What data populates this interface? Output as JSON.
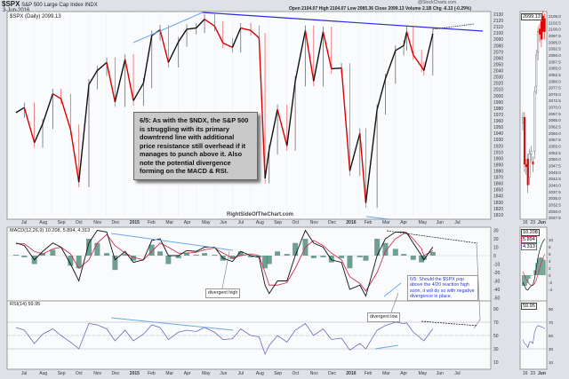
{
  "header": {
    "symbol": "$SPX",
    "name": "S&P 500 Large Cap Index",
    "exchange": "INDX",
    "date": "3-Jun-2016",
    "brand": "@StockCharts.com",
    "quote": "Open 2104.07  High 2104.07  Low 2085.36  Close 2099.13  Volume 2.1B  Chg -6.13 (-0.29%)",
    "legend": "$SPX (Daily) 2099.13",
    "watermark": "RightSideOfTheChart.com"
  },
  "annotations": {
    "main_note": "6/5: As with the $NDX, the S&P 500 is struggling with its primary downtrend line with additional price resistance still overhead if it manages to punch above it. Also note the potential divergence forming on the MACD & RSI.",
    "macd_note": "6/5: Should the $SPX pop above the 4/20 reaction high soon, it will do so with negative divergence in place.",
    "divergent_high": "divergent high",
    "divergent_low": "divergent low"
  },
  "colors": {
    "up": "#111111",
    "down": "#dd0000",
    "macd": "#111111",
    "signal": "#cc3355",
    "hist": "#4a8a78",
    "trend": "#2a2adc",
    "trend_light": "#6aa8e8",
    "rsi": "#6a6ab8"
  },
  "chart_data": [
    {
      "type": "line",
      "title": "$SPX (Daily) 2099.13",
      "months": [
        "Jul",
        "Aug",
        "Sep",
        "Oct",
        "Nov",
        "Dec",
        "2015",
        "Feb",
        "Mar",
        "Apr",
        "May",
        "Jun",
        "Jul",
        "Aug",
        "Sep",
        "Oct",
        "Nov",
        "Dec",
        "2016",
        "Feb",
        "Mar",
        "Apr",
        "May",
        "Jun",
        "Jul"
      ],
      "ylim": [
        1805,
        2135
      ],
      "yticks": [
        2130,
        2120,
        2110,
        2100,
        2090,
        2080,
        2070,
        2060,
        2050,
        2040,
        2030,
        2020,
        2010,
        2000,
        1990,
        1980,
        1970,
        1960,
        1950,
        1940,
        1930,
        1920,
        1910,
        1900,
        1890,
        1880,
        1870,
        1860,
        1850,
        1840,
        1830,
        1820,
        1810
      ],
      "dates": [
        "2014-07-01",
        "2014-07-15",
        "2014-08-01",
        "2014-08-15",
        "2014-09-01",
        "2014-09-15",
        "2014-10-01",
        "2014-10-15",
        "2014-11-01",
        "2014-11-15",
        "2014-12-01",
        "2014-12-15",
        "2015-01-01",
        "2015-01-15",
        "2015-02-01",
        "2015-02-15",
        "2015-03-01",
        "2015-03-15",
        "2015-04-01",
        "2015-04-15",
        "2015-05-01",
        "2015-05-15",
        "2015-06-01",
        "2015-06-15",
        "2015-07-01",
        "2015-07-15",
        "2015-08-01",
        "2015-08-15",
        "2015-08-25",
        "2015-09-01",
        "2015-09-15",
        "2015-10-01",
        "2015-10-15",
        "2015-11-01",
        "2015-11-15",
        "2015-12-01",
        "2015-12-15",
        "2016-01-01",
        "2016-01-15",
        "2016-02-01",
        "2016-02-11",
        "2016-03-01",
        "2016-03-15",
        "2016-04-01",
        "2016-04-15",
        "2016-04-20",
        "2016-05-01",
        "2016-05-15",
        "2016-05-19",
        "2016-06-03"
      ],
      "close": [
        1973,
        1981,
        1925,
        1955,
        2003,
        1995,
        1946,
        1862,
        2018,
        2040,
        2053,
        1990,
        2058,
        1992,
        2020,
        2096,
        2105,
        2053,
        2086,
        2106,
        2108,
        2122,
        2111,
        2084,
        2077,
        2108,
        2104,
        2092,
        1868,
        1914,
        1978,
        1920,
        2023,
        2104,
        2023,
        2102,
        2043,
        2044,
        1880,
        1940,
        1829,
        1978,
        2027,
        2072,
        2080,
        2102,
        2065,
        2046,
        2040,
        2099
      ],
      "macd": [
        15,
        12,
        -5,
        5,
        15,
        10,
        -10,
        -30,
        15,
        30,
        28,
        -5,
        5,
        -8,
        -5,
        18,
        20,
        0,
        0,
        6,
        5,
        10,
        10,
        -3,
        -7,
        5,
        0,
        -2,
        -35,
        -45,
        -30,
        -30,
        0,
        30,
        15,
        10,
        -5,
        -8,
        -40,
        -35,
        -48,
        0,
        20,
        28,
        28,
        27,
        15,
        0,
        -5,
        10.2
      ],
      "signal": [
        14,
        14,
        5,
        2,
        8,
        10,
        2,
        -15,
        -5,
        15,
        25,
        12,
        3,
        -2,
        -5,
        5,
        15,
        10,
        3,
        3,
        4,
        7,
        9,
        3,
        -3,
        0,
        2,
        0,
        -20,
        -35,
        -35,
        -32,
        -15,
        10,
        18,
        12,
        3,
        -5,
        -25,
        -33,
        -42,
        -20,
        5,
        20,
        26,
        27,
        20,
        8,
        0,
        5.9
      ],
      "macd_label": "MACD(12,26,9) 10.208, 5.894, 4.313",
      "macd_ticks": [
        30,
        20,
        10,
        0,
        -10,
        -20,
        -30,
        -40,
        -50
      ],
      "rsi": [
        62,
        58,
        38,
        52,
        60,
        50,
        40,
        30,
        68,
        66,
        60,
        42,
        58,
        42,
        52,
        66,
        62,
        44,
        55,
        58,
        56,
        62,
        55,
        44,
        45,
        60,
        50,
        48,
        22,
        35,
        50,
        40,
        58,
        68,
        50,
        60,
        44,
        46,
        28,
        38,
        30,
        58,
        65,
        70,
        68,
        69,
        55,
        45,
        42,
        60
      ],
      "rsi_label": "RSI(14) 59.95",
      "rsi_ticks": [
        90,
        70,
        50,
        30,
        10
      ]
    },
    {
      "type": "bar",
      "title": "mini daily",
      "xlabels": [
        "16",
        "23",
        "Jun"
      ],
      "yticks": [
        "2105.0",
        "2102.5",
        "2100.0",
        "2097.5",
        "2095.0",
        "2092.5",
        "2090.0",
        "2087.5",
        "2085.0",
        "2082.5",
        "2080.0",
        "2077.5",
        "2075.0",
        "2072.5",
        "2070.0",
        "2067.5",
        "2065.0",
        "2062.5",
        "2060.0",
        "2057.5",
        "2055.0",
        "2052.5",
        "2050.0",
        "2047.5",
        "2045.0",
        "2042.5",
        "2040.0",
        "2037.5",
        "2035.0",
        "2032.5",
        "2030.0",
        "2027.5"
      ],
      "ylim": [
        2026,
        2106
      ],
      "open": [
        2064,
        2066,
        2048,
        2050,
        2043,
        2052,
        2049,
        2053,
        2078,
        2091,
        2100,
        2103,
        2105,
        2104
      ],
      "close": [
        2066,
        2048,
        2047,
        2040,
        2052,
        2053,
        2048,
        2076,
        2090,
        2099,
        2098,
        2096,
        2099,
        2099
      ],
      "macd": [
        -2,
        -3,
        -4,
        -4.2,
        -3.5,
        -3,
        -2.8,
        -1,
        2,
        5,
        7,
        8.5,
        9.5,
        10.2
      ],
      "signal": [
        1,
        0,
        -1,
        -2,
        -2.5,
        -2.8,
        -2.8,
        -2.4,
        -1.4,
        0.3,
        2,
        3.5,
        4.8,
        5.9
      ],
      "macd_ticks": [
        10,
        8,
        6,
        4,
        2,
        0,
        -2,
        -4
      ],
      "rsi": [
        44,
        38,
        36,
        32,
        40,
        41,
        38,
        55,
        62,
        65,
        64,
        63,
        62,
        60
      ],
      "rsi_ticks": [
        90,
        70,
        50,
        30,
        10
      ],
      "last_price": "2099.13",
      "badges": [
        "10.208",
        "5.894",
        "4.313",
        "59.95"
      ]
    }
  ]
}
